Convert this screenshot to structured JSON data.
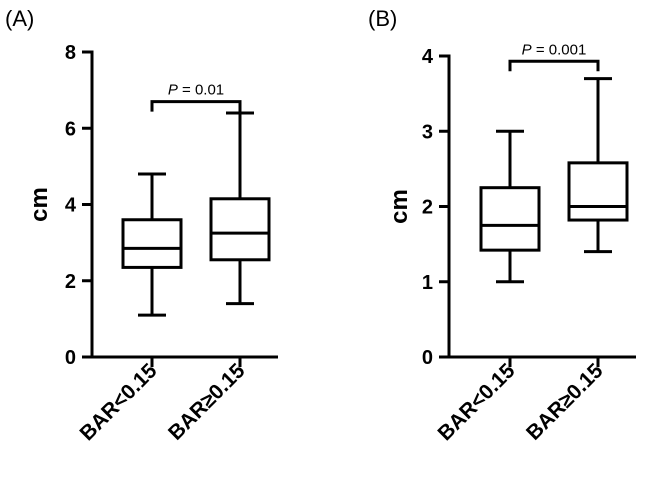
{
  "chart_data": [
    {
      "type": "box",
      "panel_label": "(A)",
      "ylabel": "cm",
      "ylim": [
        0,
        8
      ],
      "yticks": [
        0,
        2,
        4,
        6,
        8
      ],
      "categories": [
        "BAR<0.15",
        "BAR≥0.15"
      ],
      "boxes": [
        {
          "category": "BAR<0.15",
          "min": 1.1,
          "q1": 2.35,
          "median": 2.85,
          "q3": 3.6,
          "max": 4.8
        },
        {
          "category": "BAR≥0.15",
          "min": 1.4,
          "q1": 2.55,
          "median": 3.25,
          "q3": 4.15,
          "max": 6.4
        }
      ],
      "significance": {
        "label_p": "P",
        "label_rest": " = 0.01",
        "height": 6.7
      }
    },
    {
      "type": "box",
      "panel_label": "(B)",
      "ylabel": "cm",
      "ylim": [
        0,
        4
      ],
      "yticks": [
        0,
        1,
        2,
        3,
        4
      ],
      "categories": [
        "BAR<0.15",
        "BAR≥0.15"
      ],
      "boxes": [
        {
          "category": "BAR<0.15",
          "min": 1.0,
          "q1": 1.42,
          "median": 1.75,
          "q3": 2.25,
          "max": 3.0
        },
        {
          "category": "BAR≥0.15",
          "min": 1.4,
          "q1": 1.82,
          "median": 2.0,
          "q3": 2.58,
          "max": 3.7
        }
      ],
      "significance": {
        "label_p": "P",
        "label_rest": " = 0.001",
        "height": 3.93
      }
    }
  ]
}
